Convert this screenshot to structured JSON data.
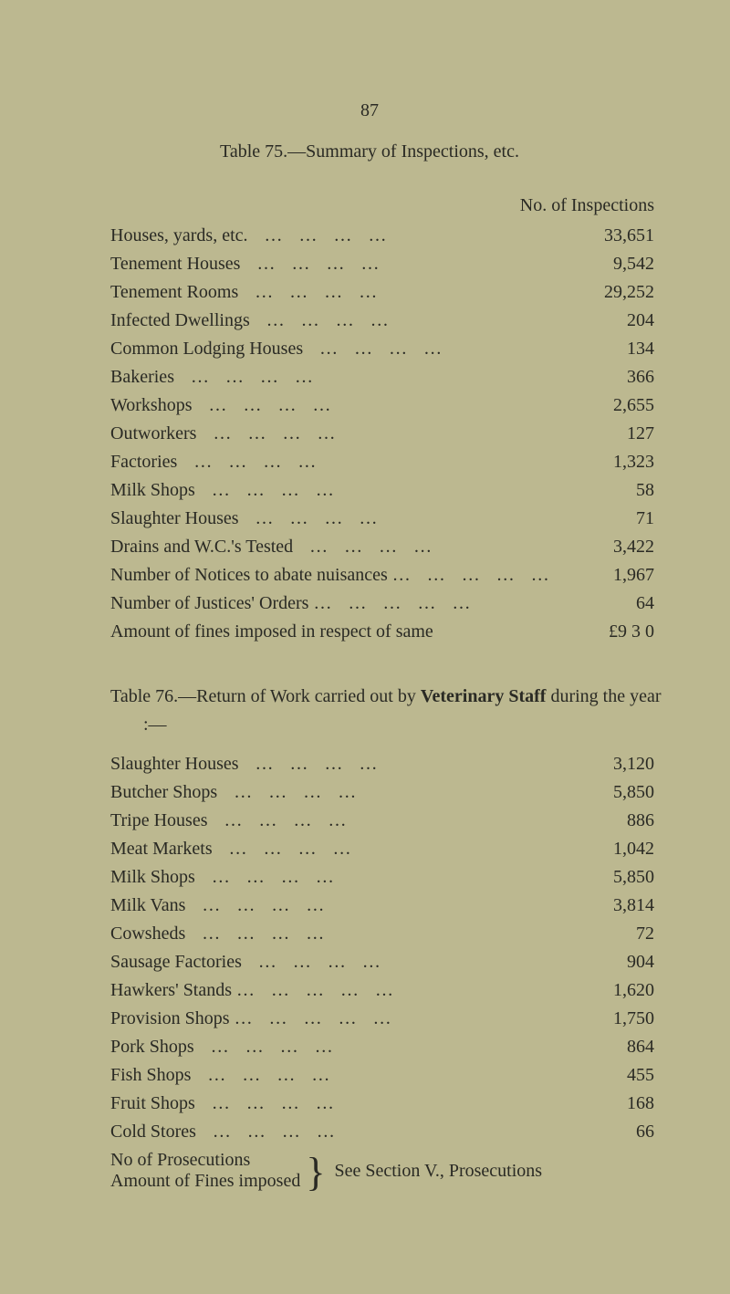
{
  "page": {
    "page_number": "87",
    "background_color": "#bcb890",
    "text_color": "#2a2a24",
    "font_family": "Times New Roman",
    "base_font_size_pt": 15
  },
  "table1": {
    "title": "Table 75.—Summary of Inspections, etc.",
    "column_header": "No. of Inspections",
    "rows": [
      {
        "label": "Houses, yards, etc.",
        "value": "33,651"
      },
      {
        "label": "Tenement Houses",
        "value": "9,542"
      },
      {
        "label": "Tenement Rooms",
        "value": "29,252"
      },
      {
        "label": "Infected Dwellings",
        "value": "204"
      },
      {
        "label": "Common Lodging Houses",
        "value": "134"
      },
      {
        "label": "Bakeries",
        "value": "366"
      },
      {
        "label": "Workshops",
        "value": "2,655"
      },
      {
        "label": "Outworkers",
        "value": "127"
      },
      {
        "label": "Factories",
        "value": "1,323"
      },
      {
        "label": "Milk Shops",
        "value": "58"
      },
      {
        "label": "Slaughter Houses",
        "value": "71"
      },
      {
        "label": "Drains and W.C.'s Tested",
        "value": "3,422"
      },
      {
        "label": "Number of Notices to abate nuisances …",
        "value": "1,967"
      },
      {
        "label": "Number of Justices' Orders …",
        "value": "64"
      },
      {
        "label": "Amount of fines imposed in respect of same",
        "value": "£9  3  0",
        "nodots": true
      }
    ]
  },
  "table2": {
    "intro": "Table 76.—Return of Work carried out by Veterinary Staff during the year :—",
    "intro_bold_term": "Veterinary Staff",
    "rows": [
      {
        "label": "Slaughter Houses",
        "value": "3,120"
      },
      {
        "label": "Butcher Shops",
        "value": "5,850"
      },
      {
        "label": "Tripe Houses",
        "value": "886"
      },
      {
        "label": "Meat Markets",
        "value": "1,042"
      },
      {
        "label": "Milk Shops",
        "value": "5,850"
      },
      {
        "label": "Milk Vans",
        "value": "3,814"
      },
      {
        "label": "Cowsheds",
        "value": "72"
      },
      {
        "label": "Sausage Factories",
        "value": "904"
      },
      {
        "label": "Hawkers' Stands …",
        "value": "1,620"
      },
      {
        "label": "Provision Shops …",
        "value": "1,750"
      },
      {
        "label": "Pork Shops",
        "value": "864"
      },
      {
        "label": "Fish Shops",
        "value": "455"
      },
      {
        "label": "Fruit Shops",
        "value": "168"
      },
      {
        "label": "Cold Stores",
        "value": "66"
      }
    ],
    "footer": {
      "left_line1": "No of Prosecutions",
      "left_line2": "Amount of Fines imposed",
      "right_text": "See Section V., Prosecutions"
    }
  }
}
